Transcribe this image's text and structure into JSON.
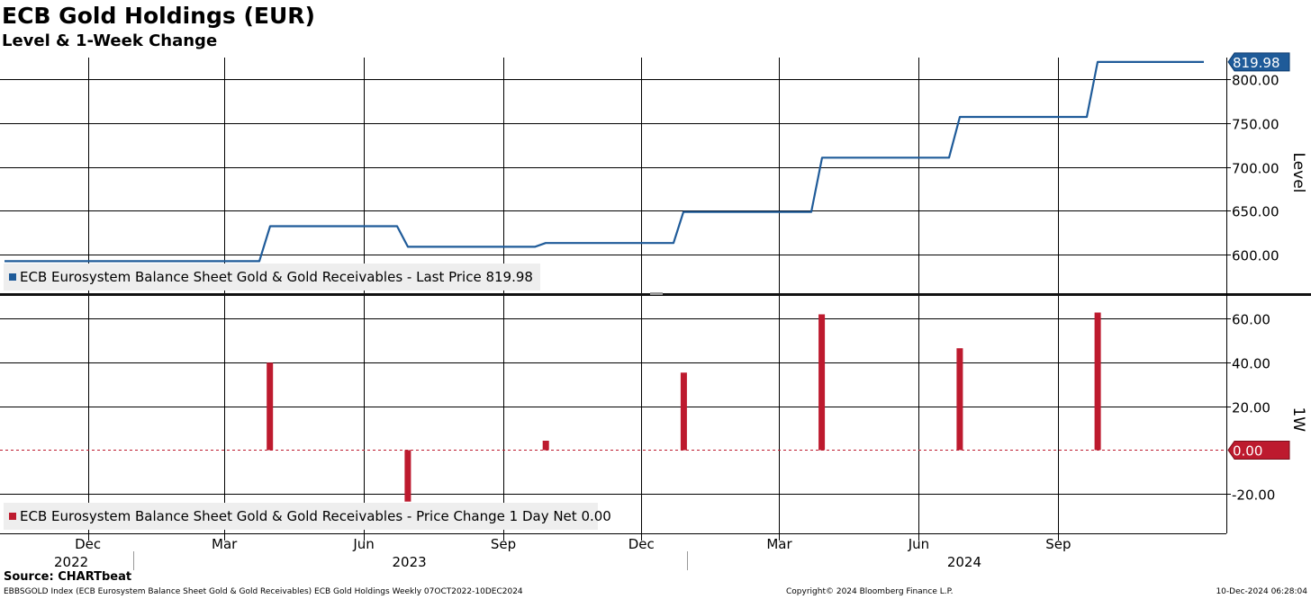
{
  "header": {
    "title": "ECB Gold Holdings (EUR)",
    "subtitle": "Level & 1-Week Change"
  },
  "footer": {
    "source": "Source: CHARTbeat",
    "left": "EBBSGOLD Index (ECB Eurosystem Balance Sheet Gold & Gold Receivables) ECB Gold Holdings  Weekly 07OCT2022-10DEC2024",
    "copyright": "Copyright© 2024 Bloomberg Finance L.P.",
    "timestamp": "10-Dec-2024 06:28:04"
  },
  "chart_data": [
    {
      "type": "line",
      "panel": "level",
      "ylabel": "Level",
      "ylim": [
        555,
        825
      ],
      "y_ticks": [
        "600.00",
        "650.00",
        "700.00",
        "750.00",
        "800.00"
      ],
      "y_tick_values": [
        600,
        650,
        700,
        750,
        800
      ],
      "last_value_label": "819.98",
      "legend": "ECB Eurosystem Balance Sheet Gold & Gold Receivables - Last Price 819.98",
      "color": "#1f5b99",
      "grid": true,
      "x": [
        "2022-10-07",
        "2022-10-28",
        "2022-12-30",
        "2023-03-24",
        "2023-03-31",
        "2023-06-23",
        "2023-06-30",
        "2023-09-22",
        "2023-09-29",
        "2023-12-22",
        "2023-12-29",
        "2024-03-22",
        "2024-03-29",
        "2024-06-21",
        "2024-06-28",
        "2024-09-20",
        "2024-09-27",
        "2024-12-06"
      ],
      "values": [
        592.6,
        592.6,
        592.6,
        592.6,
        632.5,
        632.5,
        609.0,
        609.0,
        613.3,
        613.3,
        648.7,
        648.7,
        710.7,
        710.7,
        757.2,
        757.2,
        819.98,
        819.98
      ]
    },
    {
      "type": "bar",
      "panel": "change",
      "ylabel": "1W",
      "ylim": [
        -38,
        70
      ],
      "y_ticks": [
        "-20.00",
        "20.00",
        "40.00",
        "60.00"
      ],
      "y_tick_values": [
        -20,
        20,
        40,
        60
      ],
      "zero_label": "0.00",
      "legend": "ECB Eurosystem Balance Sheet Gold & Gold Receivables - Price Change 1 Day Net 0.00",
      "color": "#bd1a2e",
      "grid": true,
      "x": [
        "2023-03-31",
        "2023-06-30",
        "2023-09-29",
        "2023-12-29",
        "2024-03-29",
        "2024-06-28",
        "2024-09-27"
      ],
      "values": [
        39.9,
        -23.5,
        4.3,
        35.4,
        62.0,
        46.5,
        62.8
      ]
    }
  ],
  "x_axis": {
    "month_ticks": [
      {
        "date": "2022-12-01",
        "label": "Dec"
      },
      {
        "date": "2023-03-01",
        "label": "Mar"
      },
      {
        "date": "2023-06-01",
        "label": "Jun"
      },
      {
        "date": "2023-09-01",
        "label": "Sep"
      },
      {
        "date": "2023-12-01",
        "label": "Dec"
      },
      {
        "date": "2024-03-01",
        "label": "Mar"
      },
      {
        "date": "2024-06-01",
        "label": "Jun"
      },
      {
        "date": "2024-09-01",
        "label": "Sep"
      }
    ],
    "year_labels": [
      {
        "label": "2022",
        "mid": "2022-11-20"
      },
      {
        "label": "2023",
        "mid": "2023-07-01"
      },
      {
        "label": "2024",
        "mid": "2024-07-01"
      }
    ],
    "year_separators": [
      "2023-12-31"
    ],
    "xlim": [
      "2022-10-07",
      "2024-12-31"
    ]
  }
}
